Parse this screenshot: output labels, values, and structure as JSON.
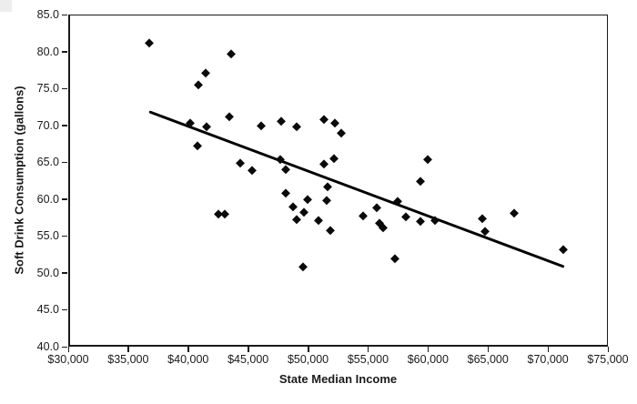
{
  "chart_data": {
    "type": "scatter",
    "title": "",
    "xlabel": "State Median Income",
    "ylabel": "Soft Drink Consumption (gallons)",
    "xlim": [
      30000,
      75000
    ],
    "ylim": [
      40,
      85
    ],
    "x_tick_values": [
      30000,
      35000,
      40000,
      45000,
      50000,
      55000,
      60000,
      65000,
      70000,
      75000
    ],
    "x_tick_labels": [
      "$30,000",
      "$35,000",
      "$40,000",
      "$45,000",
      "$50,000",
      "$55,000",
      "$60,000",
      "$65,000",
      "$70,000",
      "$75,000"
    ],
    "y_tick_values": [
      40,
      45,
      50,
      55,
      60,
      65,
      70,
      75,
      80,
      85
    ],
    "y_tick_labels": [
      "40.0",
      "45.0",
      "50.0",
      "55.0",
      "60.0",
      "65.0",
      "70.0",
      "75.0",
      "80.0",
      "85.0"
    ],
    "grid": false,
    "legend": "none",
    "marker": "diamond",
    "colors": {
      "marker": "#0a0a0a",
      "trendline": "#000000",
      "axis": "#1a1a1a"
    },
    "points": [
      [
        36600,
        81.3
      ],
      [
        43400,
        79.8
      ],
      [
        41300,
        77.2
      ],
      [
        40700,
        75.6
      ],
      [
        43300,
        71.3
      ],
      [
        40000,
        70.4
      ],
      [
        41400,
        70.0
      ],
      [
        45900,
        70.1
      ],
      [
        47600,
        70.7
      ],
      [
        48900,
        70.0
      ],
      [
        51200,
        71.0
      ],
      [
        52100,
        70.4
      ],
      [
        52600,
        69.1
      ],
      [
        40600,
        67.4
      ],
      [
        44200,
        65.0
      ],
      [
        45200,
        64.0
      ],
      [
        47500,
        65.5
      ],
      [
        48000,
        64.2
      ],
      [
        51200,
        64.9
      ],
      [
        52000,
        65.6
      ],
      [
        59800,
        65.5
      ],
      [
        59200,
        62.6
      ],
      [
        51500,
        61.8
      ],
      [
        48000,
        61.0
      ],
      [
        49800,
        60.1
      ],
      [
        51400,
        60.0
      ],
      [
        57300,
        59.9
      ],
      [
        42400,
        58.1
      ],
      [
        42900,
        58.1
      ],
      [
        48600,
        59.1
      ],
      [
        49500,
        58.4
      ],
      [
        55600,
        59.0
      ],
      [
        58000,
        57.7
      ],
      [
        67000,
        58.2
      ],
      [
        48900,
        57.4
      ],
      [
        50700,
        57.3
      ],
      [
        54400,
        57.9
      ],
      [
        59200,
        57.1
      ],
      [
        60400,
        57.2
      ],
      [
        64400,
        57.5
      ],
      [
        51700,
        55.9
      ],
      [
        55800,
        56.9
      ],
      [
        56100,
        56.3
      ],
      [
        64600,
        55.8
      ],
      [
        57100,
        52.1
      ],
      [
        71100,
        53.3
      ],
      [
        49400,
        51.0
      ]
    ],
    "trendline": {
      "x1": 36700,
      "y1": 71.9,
      "x2": 71100,
      "y2": 51.0
    }
  }
}
